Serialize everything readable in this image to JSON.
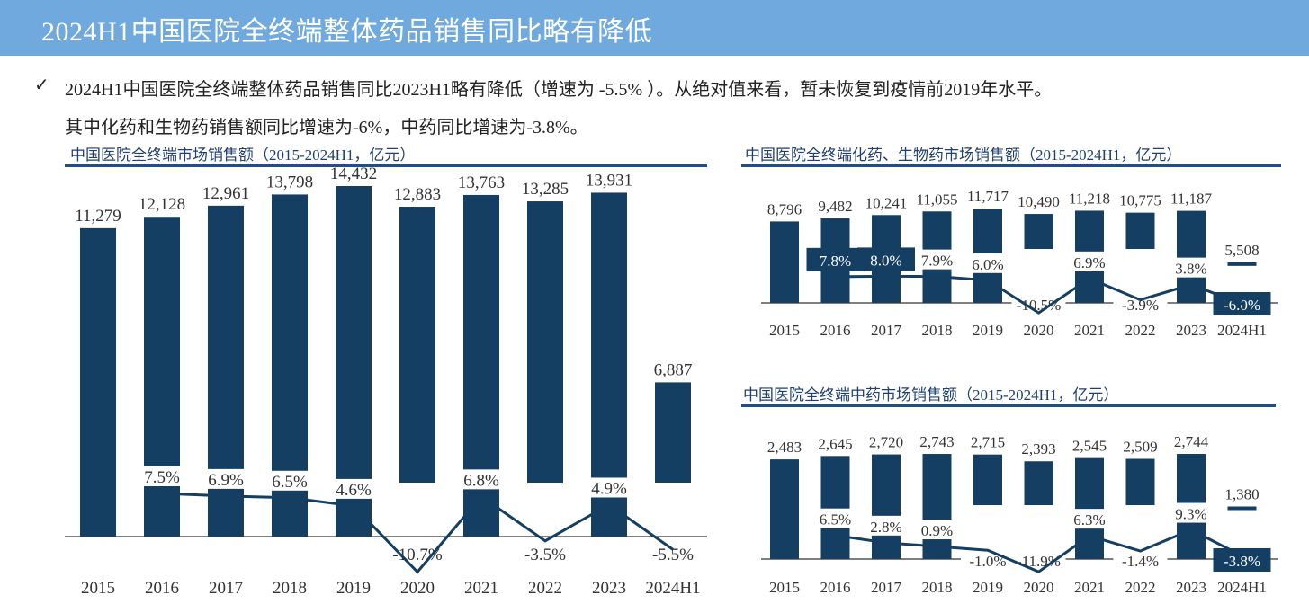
{
  "banner": {
    "title": "2024H1中国医院全终端整体药品销售同比略有降低"
  },
  "summary": {
    "check_icon": "✓",
    "line1": "2024H1中国医院全终端整体药品销售同比2023H1略有降低（增速为 -5.5% ）。从绝对值来看，暂未恢复到疫情前2019年水平。",
    "line2": "其中化药和生物药销售额同比增速为-6%，中药同比增速为-3.8%。"
  },
  "colors": {
    "bar": "#143f63",
    "banner": "#6fa9dd",
    "rule": "#1f4e8c"
  },
  "chart_data": [
    {
      "type": "bar",
      "title": "中国医院全终端市场销售额（2015-2024H1，亿元）",
      "categories": [
        "2015",
        "2016",
        "2017",
        "2018",
        "2019",
        "2020",
        "2021",
        "2022",
        "2023",
        "2024H1"
      ],
      "series": [
        {
          "name": "销售额",
          "values": [
            11279,
            12128,
            12961,
            13798,
            14432,
            12883,
            13763,
            13285,
            13931,
            6887
          ],
          "labels": [
            "11,279",
            "12,128",
            "12,961",
            "13,798",
            "14,432",
            "12,883",
            "13,763",
            "13,285",
            "13,931",
            "6,887"
          ]
        },
        {
          "name": "同比增速",
          "type": "line",
          "values": [
            null,
            7.5,
            6.9,
            6.5,
            4.6,
            -10.7,
            6.8,
            -3.5,
            4.9,
            -5.5
          ],
          "labels": [
            "",
            "7.5%",
            "6.9%",
            "6.5%",
            "4.6%",
            "-10.7%",
            "6.8%",
            "-3.5%",
            "4.9%",
            "-5.5%"
          ]
        }
      ]
    },
    {
      "type": "bar",
      "title": "中国医院全终端化药、生物药市场销售额（2015-2024H1，亿元）",
      "categories": [
        "2015",
        "2016",
        "2017",
        "2018",
        "2019",
        "2020",
        "2021",
        "2022",
        "2023",
        "2024H1"
      ],
      "series": [
        {
          "name": "销售额",
          "values": [
            8796,
            9482,
            10241,
            11055,
            11717,
            10490,
            11218,
            10775,
            11187,
            5508
          ],
          "labels": [
            "8,796",
            "9,482",
            "10,241",
            "11,055",
            "11,717",
            "10,490",
            "11,218",
            "10,775",
            "11,187",
            "5,508"
          ]
        },
        {
          "name": "同比增速",
          "type": "line",
          "values": [
            null,
            7.8,
            8.0,
            7.9,
            6.0,
            -10.5,
            6.9,
            -3.9,
            3.8,
            -6.0
          ],
          "labels": [
            "",
            "7.8%",
            "8.0%",
            "7.9%",
            "6.0%",
            "-10.5%",
            "6.9%",
            "-3.9%",
            "3.8%",
            "-6.0%"
          ]
        }
      ]
    },
    {
      "type": "bar",
      "title": "中国医院全终端中药市场销售额（2015-2024H1，亿元）",
      "categories": [
        "2015",
        "2016",
        "2017",
        "2018",
        "2019",
        "2020",
        "2021",
        "2022",
        "2023",
        "2024H1"
      ],
      "series": [
        {
          "name": "销售额",
          "values": [
            2483,
            2645,
            2720,
            2743,
            2715,
            2393,
            2545,
            2509,
            2744,
            1380
          ],
          "labels": [
            "2,483",
            "2,645",
            "2,720",
            "2,743",
            "2,715",
            "2,393",
            "2,545",
            "2,509",
            "2,744",
            "1,380"
          ]
        },
        {
          "name": "同比增速",
          "type": "line",
          "values": [
            null,
            6.5,
            2.8,
            0.9,
            -1.0,
            -11.9,
            6.3,
            -1.4,
            9.3,
            -3.8
          ],
          "labels": [
            "",
            "6.5%",
            "2.8%",
            "0.9%",
            "-1.0%",
            "-11.9%",
            "6.3%",
            "-1.4%",
            "9.3%",
            "-3.8%"
          ]
        }
      ]
    }
  ]
}
